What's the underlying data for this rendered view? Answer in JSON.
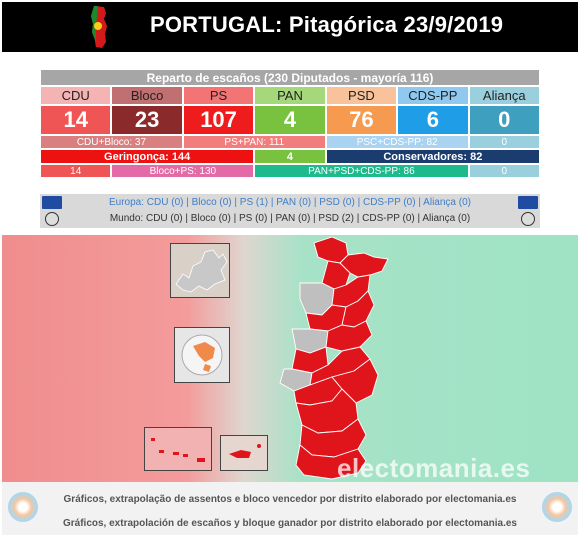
{
  "header": {
    "title": "PORTUGAL: Pitagórica 23/9/2019"
  },
  "table": {
    "title": "Reparto de escaños (230 Diputados - mayoría 116)",
    "parties": [
      {
        "name": "CDU",
        "seats": "14",
        "name_bg": "#f4b4b4",
        "seat_bg": "#f05555"
      },
      {
        "name": "Bloco",
        "seats": "23",
        "name_bg": "#c07070",
        "seat_bg": "#8b2a2a"
      },
      {
        "name": "PS",
        "seats": "107",
        "name_bg": "#f27474",
        "seat_bg": "#ee1c1c"
      },
      {
        "name": "PAN",
        "seats": "4",
        "name_bg": "#a5d87a",
        "seat_bg": "#78c23f"
      },
      {
        "name": "PSD",
        "seats": "76",
        "name_bg": "#f8c39a",
        "seat_bg": "#f59a4f"
      },
      {
        "name": "CDS-PP",
        "seats": "6",
        "name_bg": "#8fc9f0",
        "seat_bg": "#1f9de6"
      },
      {
        "name": "Aliança",
        "seats": "0",
        "name_bg": "#9ad0dd",
        "seat_bg": "#3e9fbe"
      }
    ],
    "combos1": {
      "cdu_bloco": "CDU+Bloco: 37",
      "ps_pan": "PS+PAN: 111",
      "psc_cds": "PSC+CDS-PP: 82",
      "zero": "0"
    },
    "blocks": {
      "left": "Geringonça: 144",
      "pan": "4",
      "right": "Conservadores: 82"
    },
    "combos2": {
      "cdu": "14",
      "bloco_ps": "Bloco+PS: 130",
      "pan_psd": "PAN+PSD+CDS-PP: 86",
      "zero": "0"
    }
  },
  "results": {
    "europe": "Europa: CDU (0) | Bloco (0) | PS (1) | PAN (0) | PSD (0) | CDS-PP (0) | Aliança (0)",
    "world": "Mundo: CDU (0) | Bloco (0) | PS (0) | PAN (0) | PSD (2) | CDS-PP (0) | Aliança (0)"
  },
  "map": {
    "watermark": "electomania.es",
    "district_color": "#e0151c",
    "inactive_color": "#bfbfbf"
  },
  "footer": {
    "pt": "Gráficos, extrapolação de assentos e bloco vencedor por distrito elaborado por electomania.es",
    "es": "Gráficos, extrapolación de escaños y bloque ganador por distrito elaborado por electomania.es"
  }
}
